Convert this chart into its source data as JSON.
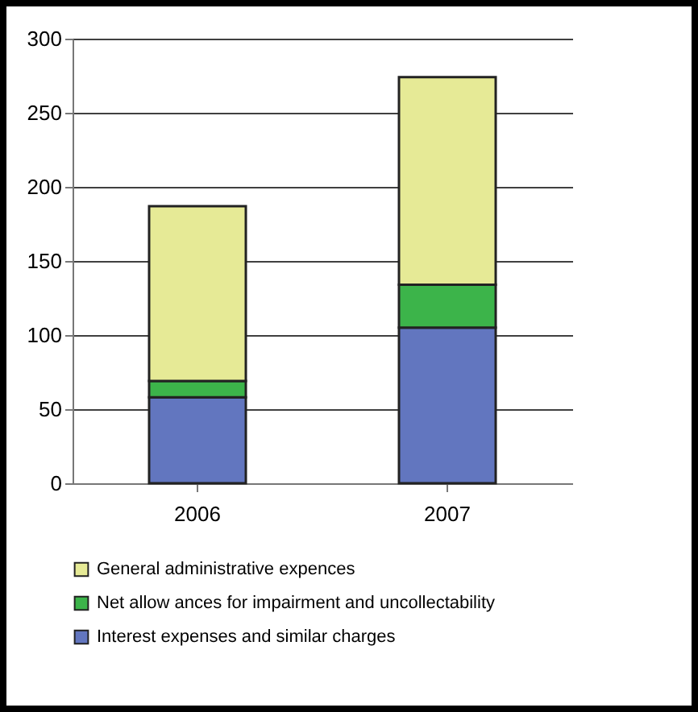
{
  "chart_data": {
    "type": "bar",
    "stacked": true,
    "categories": [
      "2006",
      "2007"
    ],
    "series": [
      {
        "name": "Interest expenses and similar charges",
        "color": "#6276bf",
        "values": [
          58,
          105
        ]
      },
      {
        "name": "Net allow ances for impairment and uncollectability",
        "color": "#3cb44a",
        "values": [
          11,
          29
        ]
      },
      {
        "name": "General administrative expences",
        "color": "#e6ea96",
        "values": [
          118,
          140
        ]
      }
    ],
    "ylim": [
      0,
      300
    ],
    "yticks": [
      0,
      50,
      100,
      150,
      200,
      250,
      300
    ],
    "grid": "y",
    "legend": "bottom"
  }
}
